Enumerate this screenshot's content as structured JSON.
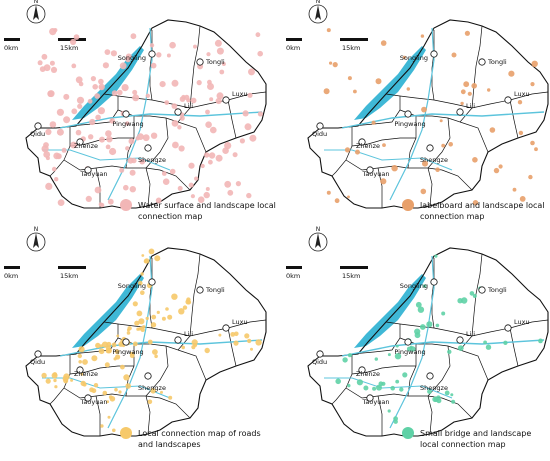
{
  "colors": {
    "water": "#3fb8d6",
    "boundary": "#111111",
    "river_line": "#5cc4dc",
    "panels": [
      "#f2b6b6",
      "#e8a06a",
      "#f6c96a",
      "#5fd1a6"
    ]
  },
  "panels": [
    {
      "legend_line1": "Water surface and landscape local",
      "legend_line2": "connection map",
      "pattern": "dense",
      "scale": {
        "zero": "0km",
        "max": "15km"
      },
      "towns": [
        {
          "name": "Tongli"
        },
        {
          "name": "Songling"
        },
        {
          "name": "Luxu"
        },
        {
          "name": "Lili"
        },
        {
          "name": "Pingwang"
        },
        {
          "name": "Qidu"
        },
        {
          "name": "Zhenze"
        },
        {
          "name": "Shengze"
        },
        {
          "name": "Taoyuan"
        }
      ]
    },
    {
      "legend_line1": "labelboard and landscape local",
      "legend_line2": "connection map",
      "pattern": "sparse",
      "scale": {
        "zero": "0km",
        "max": "15km"
      },
      "towns": [
        {
          "name": "Tongli"
        },
        {
          "name": "Songling"
        },
        {
          "name": "Luxu"
        },
        {
          "name": "Lili"
        },
        {
          "name": "Pingwang"
        },
        {
          "name": "Qidu"
        },
        {
          "name": "Zhenze"
        },
        {
          "name": "Shengze"
        },
        {
          "name": "Taoyuan"
        }
      ]
    },
    {
      "legend_line1": "Local connection map of roads",
      "legend_line2": "and landscapes",
      "pattern": "roads",
      "scale": {
        "zero": "0km",
        "max": "15km"
      },
      "towns": [
        {
          "name": "Tongli"
        },
        {
          "name": "Songling"
        },
        {
          "name": "Luxu"
        },
        {
          "name": "Lili"
        },
        {
          "name": "Pingwang"
        },
        {
          "name": "Qidu"
        },
        {
          "name": "Zhenze"
        },
        {
          "name": "Shengze"
        },
        {
          "name": "Taoyuan"
        }
      ]
    },
    {
      "legend_line1": "Small bridge and landscape",
      "legend_line2": "local connection map",
      "pattern": "bridge",
      "scale": {
        "zero": "0km",
        "max": "15km"
      },
      "towns": [
        {
          "name": "Tongli"
        },
        {
          "name": "Songling"
        },
        {
          "name": "Luxu"
        },
        {
          "name": "Lili"
        },
        {
          "name": "Pingwang"
        },
        {
          "name": "Qidu"
        },
        {
          "name": "Zhenze"
        },
        {
          "name": "Shengze"
        },
        {
          "name": "Taoyuan"
        }
      ]
    }
  ]
}
